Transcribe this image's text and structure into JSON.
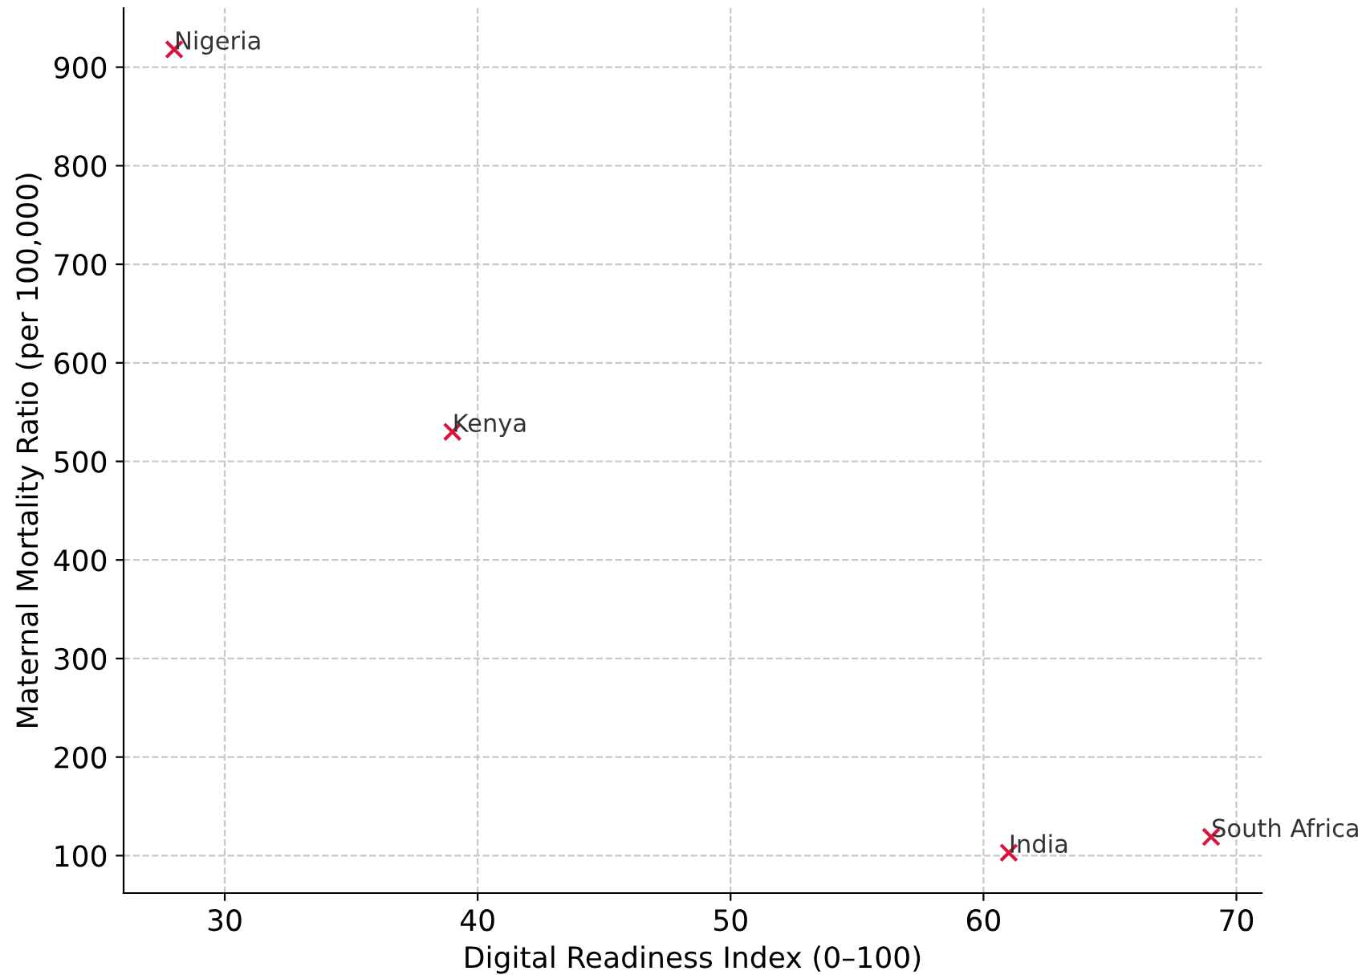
{
  "chart_data": {
    "type": "scatter",
    "xlabel": "Digital Readiness Index (0–100)",
    "ylabel": "Maternal Mortality Ratio (per 100,000)",
    "x": [
      28,
      39,
      61,
      69
    ],
    "series": [
      {
        "color": "#dc143c",
        "values": [
          918,
          530,
          103,
          119
        ]
      }
    ],
    "annotations": [
      {
        "text": "Nigeria",
        "x": 28,
        "y": 918
      },
      {
        "text": "Kenya",
        "x": 39,
        "y": 530
      },
      {
        "text": "India",
        "x": 61,
        "y": 103
      },
      {
        "text": "South Africa",
        "x": 69,
        "y": 119
      }
    ],
    "xlim": [
      26,
      71
    ],
    "ylim": [
      62,
      960
    ],
    "xticks": [
      30,
      40,
      50,
      60,
      70
    ],
    "yticks": [
      100,
      200,
      300,
      400,
      500,
      600,
      700,
      800,
      900
    ],
    "grid": true,
    "marker": "cross",
    "legend": false
  }
}
